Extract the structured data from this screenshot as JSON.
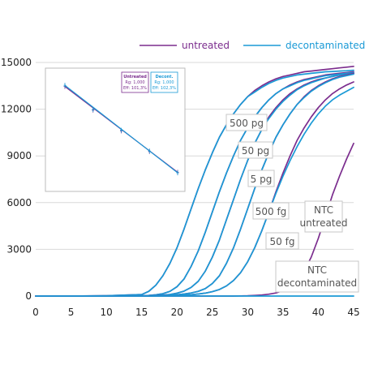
{
  "colors": {
    "untreated": "#7b2d8e",
    "decontaminated": "#1a9ad6",
    "grid": "#d9d9d9",
    "axis": "#555555"
  },
  "chart_data": {
    "type": "line",
    "title": "",
    "xlabel": "",
    "ylabel": "",
    "xlim": [
      0,
      45
    ],
    "ylim": [
      0,
      15000
    ],
    "xticks": [
      0,
      5,
      10,
      15,
      20,
      25,
      30,
      35,
      40,
      45
    ],
    "yticks": [
      0,
      3000,
      6000,
      9000,
      12000,
      15000
    ],
    "grid": "horizontal",
    "legend": {
      "position": "top",
      "entries": [
        "untreated",
        "decontaminated"
      ]
    },
    "sample_x": [
      0,
      5,
      10,
      15,
      16,
      17,
      18,
      19,
      20,
      21,
      22,
      23,
      24,
      25,
      26,
      27,
      28,
      29,
      30,
      31,
      32,
      33,
      34,
      35,
      36,
      37,
      38,
      39,
      40,
      41,
      42,
      43,
      44,
      45
    ],
    "series": [
      {
        "name": "untreated",
        "label": "500 pg",
        "values": [
          0,
          0,
          20,
          100,
          300,
          700,
          1300,
          2100,
          3100,
          4300,
          5600,
          6900,
          8100,
          9200,
          10200,
          11000,
          11700,
          12300,
          12800,
          13200,
          13500,
          13750,
          13950,
          14100,
          14200,
          14300,
          14400,
          14450,
          14500,
          14550,
          14600,
          14650,
          14700,
          14750
        ]
      },
      {
        "name": "decontaminated",
        "label": "500 pg",
        "values": [
          0,
          0,
          20,
          100,
          300,
          700,
          1300,
          2100,
          3100,
          4300,
          5600,
          6900,
          8100,
          9200,
          10200,
          11000,
          11700,
          12300,
          12800,
          13100,
          13400,
          13650,
          13850,
          14000,
          14100,
          14200,
          14250,
          14300,
          14350,
          14400,
          14420,
          14450,
          14470,
          14500
        ]
      },
      {
        "name": "untreated",
        "label": "50 pg",
        "values": [
          0,
          0,
          0,
          20,
          40,
          80,
          150,
          300,
          600,
          1100,
          1900,
          2900,
          4100,
          5400,
          6700,
          7900,
          9000,
          10000,
          10800,
          11500,
          12100,
          12600,
          13000,
          13300,
          13550,
          13750,
          13900,
          14000,
          14100,
          14200,
          14250,
          14300,
          14350,
          14400
        ]
      },
      {
        "name": "decontaminated",
        "label": "50 pg",
        "values": [
          0,
          0,
          0,
          20,
          40,
          80,
          150,
          300,
          600,
          1100,
          1900,
          2900,
          4100,
          5400,
          6700,
          7900,
          9000,
          10000,
          10800,
          11500,
          12100,
          12600,
          13000,
          13300,
          13500,
          13700,
          13850,
          13950,
          14050,
          14150,
          14200,
          14250,
          14300,
          14350
        ]
      },
      {
        "name": "untreated",
        "label": "5 pg",
        "values": [
          0,
          0,
          0,
          10,
          20,
          30,
          60,
          100,
          180,
          320,
          550,
          950,
          1600,
          2500,
          3600,
          4900,
          6200,
          7500,
          8700,
          9800,
          10700,
          11500,
          12100,
          12600,
          13000,
          13300,
          13550,
          13750,
          13900,
          14000,
          14100,
          14200,
          14250,
          14300
        ]
      },
      {
        "name": "decontaminated",
        "label": "5 pg",
        "values": [
          0,
          0,
          0,
          10,
          20,
          30,
          60,
          100,
          180,
          320,
          550,
          950,
          1600,
          2500,
          3600,
          4900,
          6200,
          7500,
          8700,
          9800,
          10700,
          11400,
          12000,
          12500,
          12900,
          13250,
          13500,
          13700,
          13850,
          14000,
          14100,
          14200,
          14250,
          14300
        ]
      },
      {
        "name": "untreated",
        "label": "500 fg",
        "values": [
          0,
          0,
          0,
          0,
          10,
          20,
          30,
          50,
          80,
          130,
          200,
          300,
          480,
          800,
          1300,
          2100,
          3100,
          4300,
          5600,
          6900,
          8100,
          9200,
          10200,
          11000,
          11700,
          12300,
          12800,
          13200,
          13500,
          13750,
          13950,
          14100,
          14200,
          14300
        ]
      },
      {
        "name": "decontaminated",
        "label": "500 fg",
        "values": [
          0,
          0,
          0,
          0,
          10,
          20,
          30,
          50,
          80,
          130,
          200,
          300,
          480,
          800,
          1300,
          2100,
          3100,
          4300,
          5600,
          6900,
          8100,
          9200,
          10200,
          11000,
          11700,
          12300,
          12750,
          13150,
          13450,
          13700,
          13900,
          14050,
          14150,
          14250
        ]
      },
      {
        "name": "untreated",
        "label": "50 fg",
        "values": [
          0,
          0,
          0,
          0,
          0,
          10,
          20,
          30,
          40,
          60,
          90,
          130,
          190,
          280,
          420,
          650,
          1000,
          1500,
          2200,
          3100,
          4200,
          5400,
          6700,
          7900,
          9000,
          10000,
          10800,
          11500,
          12100,
          12600,
          13000,
          13300,
          13550,
          13750
        ]
      },
      {
        "name": "decontaminated",
        "label": "50 fg",
        "values": [
          0,
          0,
          0,
          0,
          0,
          10,
          20,
          30,
          40,
          60,
          90,
          130,
          190,
          280,
          420,
          650,
          1000,
          1500,
          2200,
          3100,
          4200,
          5400,
          6600,
          7700,
          8700,
          9600,
          10400,
          11100,
          11700,
          12200,
          12600,
          12900,
          13150,
          13400
        ]
      },
      {
        "name": "untreated",
        "label": "NTC untreated",
        "values": [
          0,
          0,
          0,
          0,
          0,
          0,
          0,
          0,
          0,
          0,
          0,
          0,
          0,
          0,
          0,
          0,
          0,
          10,
          20,
          40,
          70,
          120,
          200,
          350,
          600,
          1000,
          1600,
          2500,
          3700,
          5100,
          6500,
          7700,
          8800,
          9800
        ]
      },
      {
        "name": "decontaminated",
        "label": "NTC decontaminated",
        "values": [
          0,
          0,
          0,
          0,
          0,
          0,
          0,
          0,
          0,
          0,
          0,
          0,
          0,
          0,
          0,
          0,
          0,
          0,
          0,
          0,
          0,
          0,
          0,
          0,
          0,
          0,
          0,
          0,
          0,
          0,
          0,
          0,
          0,
          0
        ]
      }
    ],
    "annotations": [
      "500 pg",
      "50 pg",
      "5 pg",
      "500 fg",
      "50 fg",
      "NTC untreated",
      "NTC decontaminated"
    ],
    "inset": {
      "type": "scatter",
      "x": [
        1,
        2,
        3,
        4,
        5
      ],
      "untreated_values": [
        27,
        23,
        19.5,
        16,
        12.5
      ],
      "decontaminated_values": [
        27.2,
        23.1,
        19.6,
        16.1,
        12.4
      ],
      "boxes": [
        {
          "series": "untreated",
          "lines": [
            "Untreated",
            "Rg: 1,000",
            "Eff: 101,3%"
          ]
        },
        {
          "series": "decontaminated",
          "lines": [
            "Decont.",
            "Rg: 1,000",
            "Eff: 102,3%"
          ]
        }
      ]
    }
  },
  "legend_labels": {
    "untreated": "untreated",
    "decontaminated": "decontaminated"
  },
  "callouts": {
    "pg500": "500 pg",
    "pg50": "50 pg",
    "pg5": "5 pg",
    "fg500": "500 fg",
    "fg50": "50 fg",
    "ntc_untreated": [
      "NTC",
      "untreated"
    ],
    "ntc_decont": [
      "NTC",
      "decontaminated"
    ]
  }
}
